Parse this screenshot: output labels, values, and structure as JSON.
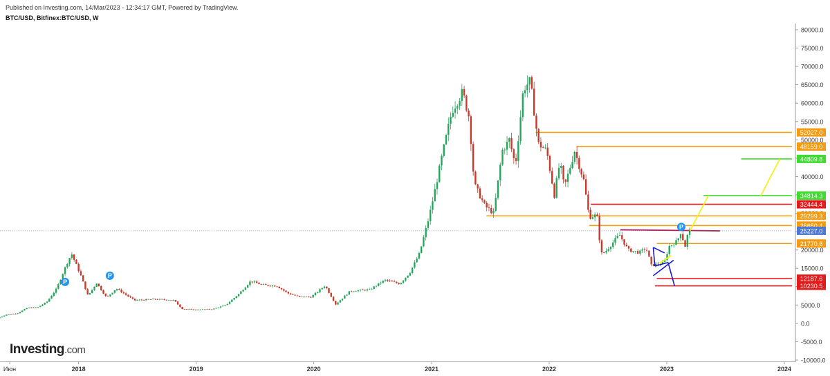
{
  "header": {
    "published": "Published on Investing.com, 14/Mar/2023 - 12:34:17 GMT, Powered by TradingView.",
    "symbol": "BTC/USD, Bitfinex:BTC/USD, W"
  },
  "logo": {
    "brand": "Investing",
    "suffix": ".com"
  },
  "colors": {
    "bull": "#26a65b",
    "bear": "#c8392b",
    "orange": "#f39c12",
    "red": "#e31b1b",
    "green": "#3ddc2e",
    "yellow": "#f4f11b",
    "blue": "#1919c8",
    "purple": "#b0245a",
    "current": "#4a78d4"
  },
  "chart_data": {
    "type": "candlestick",
    "ylim": [
      -10000,
      80000
    ],
    "y_ticks": [
      "80000.0",
      "75000.0",
      "70000.0",
      "65000.0",
      "60000.0",
      "55000.0",
      "50000.0",
      "45000.0",
      "40000.0",
      "35000.0",
      "30000.0",
      "25000.0",
      "20000.0",
      "15000.0",
      "10000.0",
      "5000.0",
      "0.0",
      "-5000.0",
      "-10000.0"
    ],
    "x_ticks": [
      {
        "label": "Июн",
        "date": "2017-06"
      },
      {
        "label": "2018",
        "date": "2018-01"
      },
      {
        "label": "2019",
        "date": "2019-01"
      },
      {
        "label": "2020",
        "date": "2020-01"
      },
      {
        "label": "2021",
        "date": "2021-01"
      },
      {
        "label": "2022",
        "date": "2022-01"
      },
      {
        "label": "2023",
        "date": "2023-01"
      },
      {
        "label": "2024",
        "date": "2024-01"
      }
    ],
    "price_path": [
      [
        "2017-05-01",
        1400
      ],
      [
        "2017-06-01",
        2500
      ],
      [
        "2017-07-01",
        2700
      ],
      [
        "2017-08-01",
        4200
      ],
      [
        "2017-09-01",
        4300
      ],
      [
        "2017-10-01",
        5800
      ],
      [
        "2017-11-01",
        9500
      ],
      [
        "2017-12-01",
        16000
      ],
      [
        "2017-12-17",
        19000
      ],
      [
        "2018-01-15",
        13000
      ],
      [
        "2018-02-06",
        7500
      ],
      [
        "2018-03-05",
        11000
      ],
      [
        "2018-04-05",
        7000
      ],
      [
        "2018-05-05",
        9500
      ],
      [
        "2018-06-30",
        6300
      ],
      [
        "2018-09-01",
        6600
      ],
      [
        "2018-10-31",
        6300
      ],
      [
        "2018-11-25",
        4000
      ],
      [
        "2018-12-31",
        3700
      ],
      [
        "2019-03-01",
        3900
      ],
      [
        "2019-04-10",
        5000
      ],
      [
        "2019-05-20",
        8000
      ],
      [
        "2019-06-26",
        11500
      ],
      [
        "2019-08-01",
        10500
      ],
      [
        "2019-09-15",
        10200
      ],
      [
        "2019-10-20",
        8200
      ],
      [
        "2019-11-25",
        7200
      ],
      [
        "2019-12-31",
        7200
      ],
      [
        "2020-02-12",
        10300
      ],
      [
        "2020-03-16",
        5200
      ],
      [
        "2020-04-30",
        8800
      ],
      [
        "2020-06-30",
        9200
      ],
      [
        "2020-08-15",
        11800
      ],
      [
        "2020-10-01",
        10800
      ],
      [
        "2020-11-01",
        13800
      ],
      [
        "2020-12-01",
        19000
      ],
      [
        "2020-12-31",
        29000
      ],
      [
        "2021-01-15",
        35000
      ],
      [
        "2021-02-08",
        45000
      ],
      [
        "2021-03-12",
        58000
      ],
      [
        "2021-04-14",
        63000
      ],
      [
        "2021-05-05",
        56000
      ],
      [
        "2021-05-20",
        38000
      ],
      [
        "2021-06-22",
        32000
      ],
      [
        "2021-07-20",
        30000
      ],
      [
        "2021-08-15",
        47000
      ],
      [
        "2021-09-06",
        50000
      ],
      [
        "2021-09-25",
        43000
      ],
      [
        "2021-10-20",
        64000
      ],
      [
        "2021-11-10",
        66000
      ],
      [
        "2021-12-05",
        49000
      ],
      [
        "2021-12-31",
        47000
      ],
      [
        "2022-01-24",
        35000
      ],
      [
        "2022-02-10",
        44000
      ],
      [
        "2022-02-24",
        37000
      ],
      [
        "2022-03-28",
        47000
      ],
      [
        "2022-04-25",
        39000
      ],
      [
        "2022-05-12",
        29000
      ],
      [
        "2022-06-05",
        29500
      ],
      [
        "2022-06-18",
        19000
      ],
      [
        "2022-07-01",
        19500
      ],
      [
        "2022-08-14",
        24200
      ],
      [
        "2022-09-10",
        20000
      ],
      [
        "2022-10-15",
        19300
      ],
      [
        "2022-11-05",
        20500
      ],
      [
        "2022-11-21",
        15800
      ],
      [
        "2022-12-31",
        16500
      ],
      [
        "2023-01-15",
        21000
      ],
      [
        "2023-02-10",
        22500
      ],
      [
        "2023-02-20",
        24800
      ],
      [
        "2023-03-10",
        20000
      ],
      [
        "2023-03-14",
        25227
      ]
    ],
    "current_price": {
      "label": "25227.0",
      "value": 25227
    },
    "horizontal_levels": [
      {
        "label": "52027.0",
        "value": 52027,
        "color": "orange",
        "from": "2021-11-20"
      },
      {
        "label": "48159.0",
        "value": 48159,
        "color": "orange",
        "from": "2022-03-28"
      },
      {
        "label": "44809.8",
        "value": 44809.8,
        "color": "green",
        "from": "2023-08-20"
      },
      {
        "label": "34814.3",
        "value": 34814.3,
        "color": "green",
        "from": "2023-04-25"
      },
      {
        "label": "32444.4",
        "value": 32444.4,
        "color": "red",
        "from": "2022-05-10"
      },
      {
        "label": "29299.3",
        "value": 29299.3,
        "color": "orange",
        "from": "2021-06-20"
      },
      {
        "label": "26650.4",
        "value": 26650.4,
        "color": "orange",
        "from": "2022-05-05"
      },
      {
        "label": "21770.8",
        "value": 21770.8,
        "color": "orange",
        "from": "2022-12-01"
      },
      {
        "label": "12187.6",
        "value": 12187.6,
        "color": "red",
        "from": "2022-12-01"
      },
      {
        "label": "10230.5",
        "value": 10230.5,
        "color": "red",
        "from": "2022-11-25"
      }
    ],
    "trend_lines": [
      {
        "color": "purple",
        "from": [
          "2022-08-10",
          25500
        ],
        "to": [
          "2023-06-15",
          25200
        ]
      },
      {
        "color": "yellow",
        "from": [
          "2023-03-14",
          25227
        ],
        "to": [
          "2023-05-10",
          34814.3
        ]
      },
      {
        "color": "yellow",
        "from": [
          "2023-10-20",
          34814.3
        ],
        "to": [
          "2023-12-18",
          44809.8
        ]
      },
      {
        "color": "yellow",
        "from": [
          "2022-12-10",
          16400
        ],
        "to": [
          "2023-01-15",
          18500
        ]
      },
      {
        "color": "blue",
        "from": [
          "2022-11-20",
          20700
        ],
        "to": [
          "2022-12-25",
          19200
        ]
      },
      {
        "color": "blue",
        "from": [
          "2022-11-20",
          20700
        ],
        "to": [
          "2022-11-25",
          15600
        ]
      },
      {
        "color": "blue",
        "from": [
          "2022-11-25",
          15600
        ],
        "to": [
          "2023-01-05",
          16600
        ]
      },
      {
        "color": "blue",
        "from": [
          "2023-01-05",
          16600
        ],
        "to": [
          "2023-01-25",
          10230.5
        ]
      },
      {
        "color": "blue",
        "from": [
          "2022-11-20",
          13000
        ],
        "to": [
          "2023-01-22",
          17200
        ]
      }
    ],
    "markers": [
      {
        "label": "P",
        "date": "2017-11-20",
        "value": 11300
      },
      {
        "label": "P",
        "date": "2018-04-08",
        "value": 13000
      },
      {
        "label": "P",
        "date": "2023-02-15",
        "value": 26300
      }
    ]
  }
}
